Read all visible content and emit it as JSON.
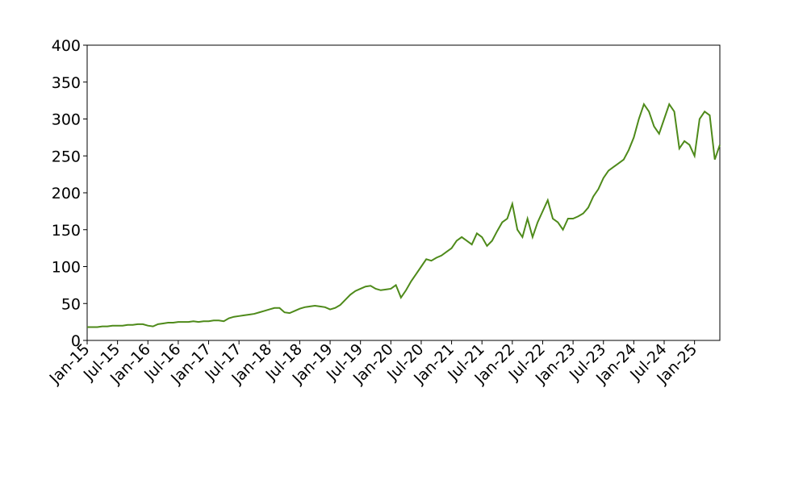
{
  "chart_data": {
    "type": "line",
    "color": "#4e8a1a",
    "x": [
      "2015-01",
      "2015-02",
      "2015-03",
      "2015-04",
      "2015-05",
      "2015-06",
      "2015-07",
      "2015-08",
      "2015-09",
      "2015-10",
      "2015-11",
      "2015-12",
      "2016-01",
      "2016-02",
      "2016-03",
      "2016-04",
      "2016-05",
      "2016-06",
      "2016-07",
      "2016-08",
      "2016-09",
      "2016-10",
      "2016-11",
      "2016-12",
      "2017-01",
      "2017-02",
      "2017-03",
      "2017-04",
      "2017-05",
      "2017-06",
      "2017-07",
      "2017-08",
      "2017-09",
      "2017-10",
      "2017-11",
      "2017-12",
      "2018-01",
      "2018-02",
      "2018-03",
      "2018-04",
      "2018-05",
      "2018-06",
      "2018-07",
      "2018-08",
      "2018-09",
      "2018-10",
      "2018-11",
      "2018-12",
      "2019-01",
      "2019-02",
      "2019-03",
      "2019-04",
      "2019-05",
      "2019-06",
      "2019-07",
      "2019-08",
      "2019-09",
      "2019-10",
      "2019-11",
      "2019-12",
      "2020-01",
      "2020-02",
      "2020-03",
      "2020-04",
      "2020-05",
      "2020-06",
      "2020-07",
      "2020-08",
      "2020-09",
      "2020-10",
      "2020-11",
      "2020-12",
      "2021-01",
      "2021-02",
      "2021-03",
      "2021-04",
      "2021-05",
      "2021-06",
      "2021-07",
      "2021-08",
      "2021-09",
      "2021-10",
      "2021-11",
      "2021-12",
      "2022-01",
      "2022-02",
      "2022-03",
      "2022-04",
      "2022-05",
      "2022-06",
      "2022-07",
      "2022-08",
      "2022-09",
      "2022-10",
      "2022-11",
      "2022-12",
      "2023-01",
      "2023-02",
      "2023-03",
      "2023-04",
      "2023-05",
      "2023-06",
      "2023-07",
      "2023-08",
      "2023-09",
      "2023-10",
      "2023-11",
      "2023-12",
      "2024-01",
      "2024-02",
      "2024-03",
      "2024-04",
      "2024-05",
      "2024-06",
      "2024-07",
      "2024-08",
      "2024-09",
      "2024-10",
      "2024-11",
      "2024-12",
      "2025-01",
      "2025-02",
      "2025-03",
      "2025-04",
      "2025-05",
      "2025-06"
    ],
    "values": [
      18,
      18,
      18,
      19,
      19,
      20,
      20,
      20,
      21,
      21,
      22,
      22,
      20,
      19,
      22,
      23,
      24,
      24,
      25,
      25,
      25,
      26,
      25,
      26,
      26,
      27,
      27,
      26,
      30,
      32,
      33,
      34,
      35,
      36,
      38,
      40,
      42,
      44,
      44,
      38,
      37,
      40,
      43,
      45,
      46,
      47,
      46,
      45,
      42,
      44,
      48,
      55,
      62,
      67,
      70,
      73,
      74,
      70,
      68,
      69,
      70,
      75,
      58,
      68,
      80,
      90,
      100,
      110,
      108,
      112,
      115,
      120,
      125,
      135,
      140,
      135,
      130,
      145,
      140,
      128,
      135,
      148,
      160,
      165,
      185,
      150,
      140,
      165,
      140,
      160,
      175,
      190,
      165,
      160,
      150,
      165,
      165,
      168,
      172,
      180,
      195,
      205,
      220,
      230,
      235,
      240,
      245,
      258,
      275,
      300,
      320,
      310,
      290,
      280,
      300,
      320,
      310,
      260,
      270,
      265,
      250,
      300,
      310,
      305,
      245,
      265
    ],
    "xlim": [
      "2015-01",
      "2025-06"
    ],
    "xticks": [
      {
        "value": "2015-01",
        "label": "Jan-15"
      },
      {
        "value": "2015-07",
        "label": "Jul-15"
      },
      {
        "value": "2016-01",
        "label": "Jan-16"
      },
      {
        "value": "2016-07",
        "label": "Jul-16"
      },
      {
        "value": "2017-01",
        "label": "Jan-17"
      },
      {
        "value": "2017-07",
        "label": "Jul-17"
      },
      {
        "value": "2018-01",
        "label": "Jan-18"
      },
      {
        "value": "2018-07",
        "label": "Jul-18"
      },
      {
        "value": "2019-01",
        "label": "Jan-19"
      },
      {
        "value": "2019-07",
        "label": "Jul-19"
      },
      {
        "value": "2020-01",
        "label": "Jan-20"
      },
      {
        "value": "2020-07",
        "label": "Jul-20"
      },
      {
        "value": "2021-01",
        "label": "Jan-21"
      },
      {
        "value": "2021-07",
        "label": "Jul-21"
      },
      {
        "value": "2022-01",
        "label": "Jan-22"
      },
      {
        "value": "2022-07",
        "label": "Jul-22"
      },
      {
        "value": "2023-01",
        "label": "Jan-23"
      },
      {
        "value": "2023-07",
        "label": "Jul-23"
      },
      {
        "value": "2024-01",
        "label": "Jan-24"
      },
      {
        "value": "2024-07",
        "label": "Jul-24"
      },
      {
        "value": "2025-01",
        "label": "Jan-25"
      }
    ],
    "ylim": [
      0,
      400
    ],
    "yticks": [
      0,
      50,
      100,
      150,
      200,
      250,
      300,
      350,
      400
    ]
  }
}
